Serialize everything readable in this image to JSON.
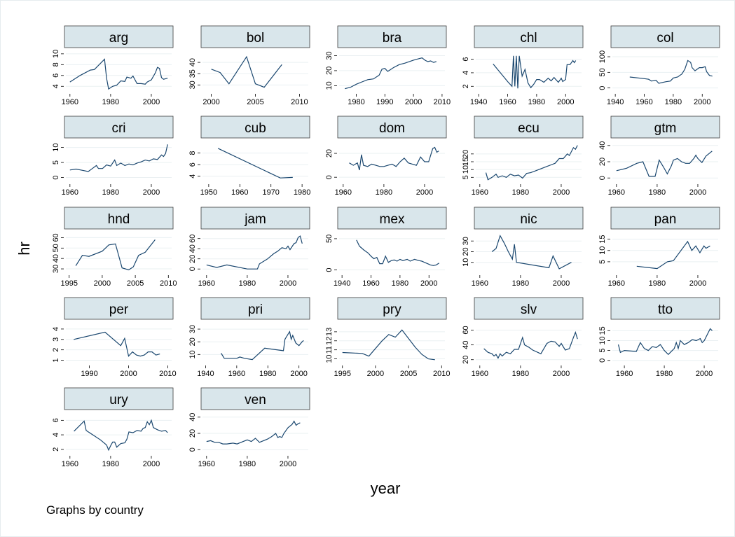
{
  "chart_data": [
    {
      "type": "line",
      "title": "arg",
      "color": "#1a476f",
      "grid": true,
      "xlim": [
        1958,
        2010
      ],
      "xticks": [
        1960,
        1980,
        2000
      ],
      "ylim": [
        3,
        10.5
      ],
      "yticks": [
        4,
        6,
        8,
        10
      ],
      "x": [
        1960,
        1965,
        1970,
        1972,
        1977,
        1978,
        1979,
        1981,
        1983,
        1985,
        1987,
        1988,
        1990,
        1991,
        1993,
        1995,
        1997,
        1998,
        2000,
        2002,
        2003,
        2004,
        2005,
        2006,
        2008
      ],
      "values": [
        4.8,
        6,
        7,
        7.1,
        9,
        5.5,
        3.5,
        4,
        4.2,
        5,
        4.9,
        5.7,
        5.5,
        5.9,
        4.5,
        4.5,
        4.4,
        4.8,
        5.2,
        6.5,
        7.5,
        7.3,
        5.6,
        5.3,
        5.5
      ]
    },
    {
      "type": "line",
      "title": "bol",
      "color": "#1a476f",
      "grid": true,
      "xlim": [
        1999,
        2011
      ],
      "xticks": [
        2000,
        2005,
        2010
      ],
      "ylim": [
        27,
        45
      ],
      "yticks": [
        30,
        35,
        40
      ],
      "x": [
        2000,
        2001,
        2002,
        2004,
        2005,
        2006,
        2008
      ],
      "values": [
        37,
        35.5,
        30.5,
        42.5,
        30.5,
        29,
        39
      ]
    },
    {
      "type": "line",
      "title": "bra",
      "color": "#1a476f",
      "grid": true,
      "xlim": [
        1974,
        2011
      ],
      "xticks": [
        1980,
        1990,
        2000,
        2010
      ],
      "ylim": [
        6,
        33
      ],
      "yticks": [
        10,
        20,
        30
      ],
      "x": [
        1976,
        1978,
        1980,
        1982,
        1984,
        1986,
        1988,
        1989,
        1990,
        1991,
        1993,
        1995,
        1997,
        2000,
        2002,
        2003,
        2004,
        2005,
        2006,
        2007,
        2008
      ],
      "values": [
        8,
        9,
        11,
        12.5,
        14,
        14.5,
        17,
        21,
        21.5,
        19.5,
        22,
        24,
        25,
        27,
        28,
        28.5,
        27,
        26,
        26.5,
        25.5,
        26
      ]
    },
    {
      "type": "line",
      "title": "chl",
      "color": "#1a476f",
      "grid": true,
      "xlim": [
        1938,
        2011
      ],
      "xticks": [
        1940,
        1960,
        1980,
        2000
      ],
      "ylim": [
        1.2,
        7.2
      ],
      "yticks": [
        2,
        4,
        6
      ],
      "x": [
        1950,
        1960,
        1963,
        1964,
        1965,
        1966,
        1967,
        1968,
        1970,
        1972,
        1974,
        1976,
        1978,
        1980,
        1982,
        1985,
        1988,
        1990,
        1992,
        1995,
        1997,
        1998,
        2000,
        2001,
        2003,
        2005,
        2006,
        2007
      ],
      "values": [
        5.3,
        2.7,
        2,
        6.5,
        2,
        6.5,
        1.7,
        6.5,
        3.5,
        4.5,
        2.5,
        1.8,
        2.3,
        3,
        3,
        2.6,
        3.2,
        2.8,
        3.3,
        2.6,
        3.2,
        2.7,
        3,
        5.2,
        5.2,
        5.8,
        5.5,
        5.8
      ]
    },
    {
      "type": "line",
      "title": "col",
      "color": "#1a476f",
      "grid": true,
      "xlim": [
        1938,
        2011
      ],
      "xticks": [
        1940,
        1960,
        1980,
        2000
      ],
      "ylim": [
        -12,
        118
      ],
      "yticks": [
        0,
        50,
        100
      ],
      "x": [
        1950,
        1960,
        1963,
        1965,
        1968,
        1970,
        1975,
        1978,
        1980,
        1983,
        1986,
        1988,
        1990,
        1992,
        1993,
        1995,
        1998,
        2000,
        2002,
        2003,
        2005,
        2007
      ],
      "values": [
        35,
        30,
        28,
        22,
        25,
        15,
        20,
        22,
        32,
        35,
        45,
        60,
        88,
        82,
        65,
        55,
        65,
        65,
        68,
        52,
        40,
        38
      ]
    },
    {
      "type": "line",
      "title": "cri",
      "color": "#1a476f",
      "grid": true,
      "xlim": [
        1958,
        2010
      ],
      "xticks": [
        1960,
        1980,
        2000
      ],
      "ylim": [
        -1.5,
        12
      ],
      "yticks": [
        0,
        5,
        10
      ],
      "x": [
        1960,
        1963,
        1966,
        1969,
        1971,
        1973,
        1974,
        1976,
        1978,
        1980,
        1982,
        1983,
        1985,
        1987,
        1989,
        1991,
        1993,
        1995,
        1997,
        1999,
        2001,
        2003,
        2005,
        2006,
        2007,
        2008
      ],
      "values": [
        2.5,
        2.8,
        2.4,
        2,
        3,
        4,
        3,
        3,
        4.2,
        3.8,
        5.8,
        4,
        4.8,
        4,
        4.5,
        4.2,
        4.8,
        5.2,
        5.8,
        5.5,
        6.2,
        6,
        7.5,
        7,
        8,
        11
      ]
    },
    {
      "type": "line",
      "title": "cub",
      "color": "#1a476f",
      "grid": true,
      "xlim": [
        1948,
        1982
      ],
      "xticks": [
        1950,
        1960,
        1970,
        1980
      ],
      "ylim": [
        3,
        10
      ],
      "yticks": [
        4,
        6,
        8
      ],
      "x": [
        1953,
        1973,
        1977
      ],
      "values": [
        8.8,
        3.7,
        3.8
      ]
    },
    {
      "type": "line",
      "title": "dom",
      "color": "#1a476f",
      "grid": true,
      "xlim": [
        1958,
        2010
      ],
      "xticks": [
        1960,
        1980,
        2000
      ],
      "ylim": [
        -4,
        30
      ],
      "yticks": [
        0,
        20
      ],
      "x": [
        1963,
        1965,
        1967,
        1968,
        1969,
        1970,
        1972,
        1974,
        1976,
        1978,
        1980,
        1982,
        1984,
        1986,
        1988,
        1990,
        1992,
        1994,
        1996,
        1998,
        2000,
        2002,
        2004,
        2005,
        2006,
        2007
      ],
      "values": [
        12,
        10,
        12,
        6,
        19,
        10,
        9,
        11,
        10,
        9,
        9,
        10,
        11,
        9,
        13,
        16,
        12,
        11,
        10,
        17,
        13,
        13,
        24,
        25,
        21,
        22
      ]
    },
    {
      "type": "line",
      "title": "ecu",
      "color": "#1a476f",
      "grid": true,
      "xlim": [
        1958,
        2010
      ],
      "xticks": [
        1960,
        1980,
        2000
      ],
      "ylim": [
        2,
        28
      ],
      "yticks": [
        5,
        10,
        15,
        20
      ],
      "x": [
        1963,
        1964,
        1966,
        1968,
        1969,
        1971,
        1973,
        1975,
        1977,
        1979,
        1981,
        1983,
        1985,
        1987,
        1989,
        1991,
        1993,
        1995,
        1997,
        1999,
        2001,
        2003,
        2004,
        2006,
        2007,
        2008
      ],
      "values": [
        8,
        3.5,
        5,
        7,
        5,
        6,
        5,
        7,
        6,
        6.5,
        4.5,
        7.5,
        8,
        9,
        10,
        11,
        12,
        13,
        14,
        17,
        17,
        20,
        19,
        24,
        23,
        25.5
      ]
    },
    {
      "type": "line",
      "title": "gtm",
      "color": "#1a476f",
      "grid": true,
      "xlim": [
        1958,
        2010
      ],
      "xticks": [
        1960,
        1980,
        2000
      ],
      "ylim": [
        -5,
        45
      ],
      "yticks": [
        0,
        20,
        40
      ],
      "x": [
        1960,
        1965,
        1970,
        1973,
        1976,
        1979,
        1981,
        1983,
        1985,
        1987,
        1988,
        1990,
        1992,
        1994,
        1996,
        1998,
        1999,
        2000,
        2002,
        2004,
        2006,
        2007
      ],
      "values": [
        9,
        12,
        18,
        20,
        2,
        2,
        22,
        14,
        5,
        15,
        22,
        24,
        20,
        18,
        18,
        24,
        28,
        24,
        19,
        27,
        31,
        33
      ]
    },
    {
      "type": "line",
      "title": "hnd",
      "color": "#1a476f",
      "grid": true,
      "xlim": [
        1994.5,
        2010.5
      ],
      "xticks": [
        1995,
        2000,
        2005,
        2010
      ],
      "ylim": [
        26,
        65
      ],
      "yticks": [
        30,
        40,
        50,
        60
      ],
      "x": [
        1996,
        1997,
        1998,
        2000,
        2001,
        2002,
        2003,
        2004,
        2004.7,
        2005.5,
        2006.5,
        2008
      ],
      "values": [
        33,
        43,
        42,
        47,
        53,
        54,
        31,
        29,
        32,
        43,
        46,
        58
      ]
    },
    {
      "type": "line",
      "title": "jam",
      "color": "#1a476f",
      "grid": true,
      "xlim": [
        1958,
        2010
      ],
      "xticks": [
        1960,
        1980,
        2000
      ],
      "ylim": [
        -8,
        72
      ],
      "yticks": [
        0,
        20,
        40,
        60
      ],
      "x": [
        1960,
        1965,
        1970,
        1980,
        1985,
        1986,
        1990,
        1993,
        1995,
        1997,
        1999,
        2000,
        2001,
        2003,
        2004,
        2005,
        2006,
        2007
      ],
      "values": [
        8,
        3,
        8,
        0,
        0,
        10,
        20,
        30,
        35,
        42,
        40,
        45,
        38,
        50,
        52,
        62,
        65,
        50
      ]
    },
    {
      "type": "line",
      "title": "mex",
      "color": "#1a476f",
      "grid": true,
      "xlim": [
        1938,
        2011
      ],
      "xticks": [
        1940,
        1960,
        1980,
        2000
      ],
      "ylim": [
        -5,
        60
      ],
      "yticks": [
        0,
        50
      ],
      "x": [
        1950,
        1952,
        1955,
        1958,
        1960,
        1962,
        1964,
        1966,
        1968,
        1970,
        1972,
        1974,
        1976,
        1978,
        1980,
        1982,
        1985,
        1987,
        1990,
        1993,
        1995,
        1997,
        1999,
        2001,
        2003,
        2005,
        2007
      ],
      "values": [
        48,
        38,
        32,
        27,
        22,
        18,
        20,
        10,
        10,
        22,
        12,
        15,
        16,
        14,
        17,
        15,
        17,
        14,
        17,
        15,
        14,
        12,
        10,
        8,
        7,
        8,
        11
      ]
    },
    {
      "type": "line",
      "title": "nic",
      "color": "#1a476f",
      "grid": true,
      "xlim": [
        1958,
        2010
      ],
      "xticks": [
        1960,
        1980,
        2000
      ],
      "ylim": [
        0,
        38
      ],
      "yticks": [
        10,
        20,
        30
      ],
      "x": [
        1966,
        1968,
        1970,
        1972,
        1974,
        1976,
        1977,
        1978,
        1994,
        1996,
        1999,
        2005
      ],
      "values": [
        20,
        23,
        35,
        28,
        20,
        13,
        27,
        10,
        5,
        16,
        4,
        10
      ]
    },
    {
      "type": "line",
      "title": "pan",
      "color": "#1a476f",
      "grid": true,
      "xlim": [
        1958,
        2010
      ],
      "xticks": [
        1960,
        1980,
        2000
      ],
      "ylim": [
        0,
        18
      ],
      "yticks": [
        5,
        10,
        15
      ],
      "x": [
        1970,
        1980,
        1985,
        1988,
        1995,
        1997,
        1999,
        2001,
        2003,
        2004,
        2006
      ],
      "values": [
        3,
        2,
        5,
        5.5,
        14,
        10,
        12,
        9,
        12,
        11,
        12
      ]
    },
    {
      "type": "line",
      "title": "per",
      "color": "#1a476f",
      "grid": true,
      "xlim": [
        1984,
        2011
      ],
      "xticks": [
        1990,
        2000,
        2010
      ],
      "ylim": [
        0.7,
        4.6
      ],
      "yticks": [
        1,
        2,
        3,
        4
      ],
      "x": [
        1986,
        1994,
        1998,
        1999,
        2000,
        2001,
        2002,
        2003,
        2004,
        2005,
        2006,
        2007,
        2008
      ],
      "values": [
        3,
        3.7,
        2.4,
        3.1,
        1.4,
        1.8,
        1.5,
        1.4,
        1.5,
        1.8,
        1.8,
        1.5,
        1.6
      ]
    },
    {
      "type": "line",
      "title": "pri",
      "color": "#1a476f",
      "grid": true,
      "xlim": [
        1938,
        2006
      ],
      "xticks": [
        1940,
        1960,
        1980,
        2000
      ],
      "ylim": [
        3,
        35
      ],
      "yticks": [
        10,
        20,
        30
      ],
      "x": [
        1950,
        1952,
        1955,
        1960,
        1962,
        1965,
        1970,
        1978,
        1990,
        1991,
        1993,
        1994,
        1995,
        1996,
        1998,
        2000,
        2002,
        2003
      ],
      "values": [
        11,
        7,
        7,
        7,
        8,
        7,
        6,
        15,
        13,
        22,
        26,
        28,
        22,
        25,
        19,
        17,
        20,
        21
      ]
    },
    {
      "type": "line",
      "title": "pry",
      "color": "#1a476f",
      "grid": true,
      "xlim": [
        1994.5,
        2010.5
      ],
      "xticks": [
        1995,
        2000,
        2005,
        2010
      ],
      "ylim": [
        9.5,
        14
      ],
      "yticks": [
        10,
        11,
        12,
        13
      ],
      "x": [
        1995,
        1998,
        1999,
        2001,
        2002,
        2003,
        2004,
        2006,
        2007,
        2008,
        2009
      ],
      "values": [
        10.7,
        10.6,
        10.3,
        12,
        12.7,
        12.4,
        13.2,
        11.3,
        10.5,
        10,
        9.9
      ]
    },
    {
      "type": "line",
      "title": "slv",
      "color": "#1a476f",
      "grid": true,
      "xlim": [
        1958,
        2010
      ],
      "xticks": [
        1960,
        1980,
        2000
      ],
      "ylim": [
        15,
        70
      ],
      "yticks": [
        20,
        40,
        60
      ],
      "x": [
        1962,
        1964,
        1966,
        1967,
        1968,
        1969,
        1970,
        1971,
        1973,
        1975,
        1977,
        1979,
        1981,
        1982,
        1984,
        1986,
        1990,
        1993,
        1995,
        1997,
        1999,
        2000,
        2002,
        2004,
        2006,
        2007,
        2008
      ],
      "values": [
        35,
        30,
        28,
        25,
        27,
        22,
        28,
        25,
        30,
        28,
        34,
        34,
        50,
        40,
        37,
        33,
        28,
        42,
        45,
        44,
        38,
        42,
        33,
        35,
        50,
        57,
        48
      ]
    },
    {
      "type": "line",
      "title": "tto",
      "color": "#1a476f",
      "grid": true,
      "xlim": [
        1954,
        2007
      ],
      "xticks": [
        1960,
        1980,
        2000
      ],
      "ylim": [
        -1.5,
        19
      ],
      "yticks": [
        0,
        5,
        10,
        15
      ],
      "x": [
        1957,
        1958,
        1960,
        1966,
        1968,
        1970,
        1972,
        1974,
        1976,
        1978,
        1980,
        1982,
        1983,
        1985,
        1986,
        1987,
        1988,
        1990,
        1992,
        1994,
        1996,
        1998,
        1999,
        2000,
        2002,
        2003,
        2004
      ],
      "values": [
        8,
        4,
        5,
        4.5,
        9,
        6,
        5,
        7,
        6.5,
        8,
        5,
        3,
        4,
        6,
        9,
        6,
        10,
        8,
        9,
        10.5,
        10,
        11,
        9,
        10,
        14,
        16,
        15
      ]
    },
    {
      "type": "line",
      "title": "ury",
      "color": "#1a476f",
      "grid": true,
      "xlim": [
        1958,
        2010
      ],
      "xticks": [
        1960,
        1980,
        2000
      ],
      "ylim": [
        1.4,
        7
      ],
      "yticks": [
        2,
        4,
        6
      ],
      "x": [
        1962,
        1967,
        1968,
        1975,
        1978,
        1979,
        1980,
        1981,
        1982,
        1983,
        1985,
        1987,
        1988,
        1989,
        1991,
        1993,
        1995,
        1996,
        1997,
        1998,
        1999,
        2000,
        2001,
        2003,
        2005,
        2007,
        2008
      ],
      "values": [
        4.5,
        5.9,
        4.6,
        3.3,
        2.6,
        1.9,
        2.5,
        3,
        3,
        2.3,
        2.8,
        2.9,
        3.4,
        4.4,
        4.3,
        4.6,
        4.5,
        4.9,
        5,
        5.8,
        5.4,
        6,
        5,
        4.7,
        4.5,
        4.6,
        4.3
      ]
    },
    {
      "type": "line",
      "title": "ven",
      "color": "#1a476f",
      "grid": true,
      "xlim": [
        1958,
        2010
      ],
      "xticks": [
        1960,
        1980,
        2000
      ],
      "ylim": [
        -5,
        45
      ],
      "yticks": [
        0,
        20,
        40
      ],
      "x": [
        1960,
        1962,
        1964,
        1966,
        1968,
        1970,
        1973,
        1975,
        1978,
        1980,
        1982,
        1984,
        1986,
        1988,
        1990,
        1992,
        1994,
        1995,
        1996,
        1997,
        1998,
        2000,
        2002,
        2003,
        2004,
        2005,
        2006
      ],
      "values": [
        10,
        11,
        9,
        9,
        7,
        7,
        8,
        7,
        10,
        12,
        10,
        14,
        9,
        11,
        13,
        16,
        20,
        15,
        16,
        15,
        20,
        27,
        31,
        35,
        30,
        32,
        33
      ]
    }
  ],
  "y_label": "hr",
  "x_label": "year",
  "note": "Graphs by country"
}
